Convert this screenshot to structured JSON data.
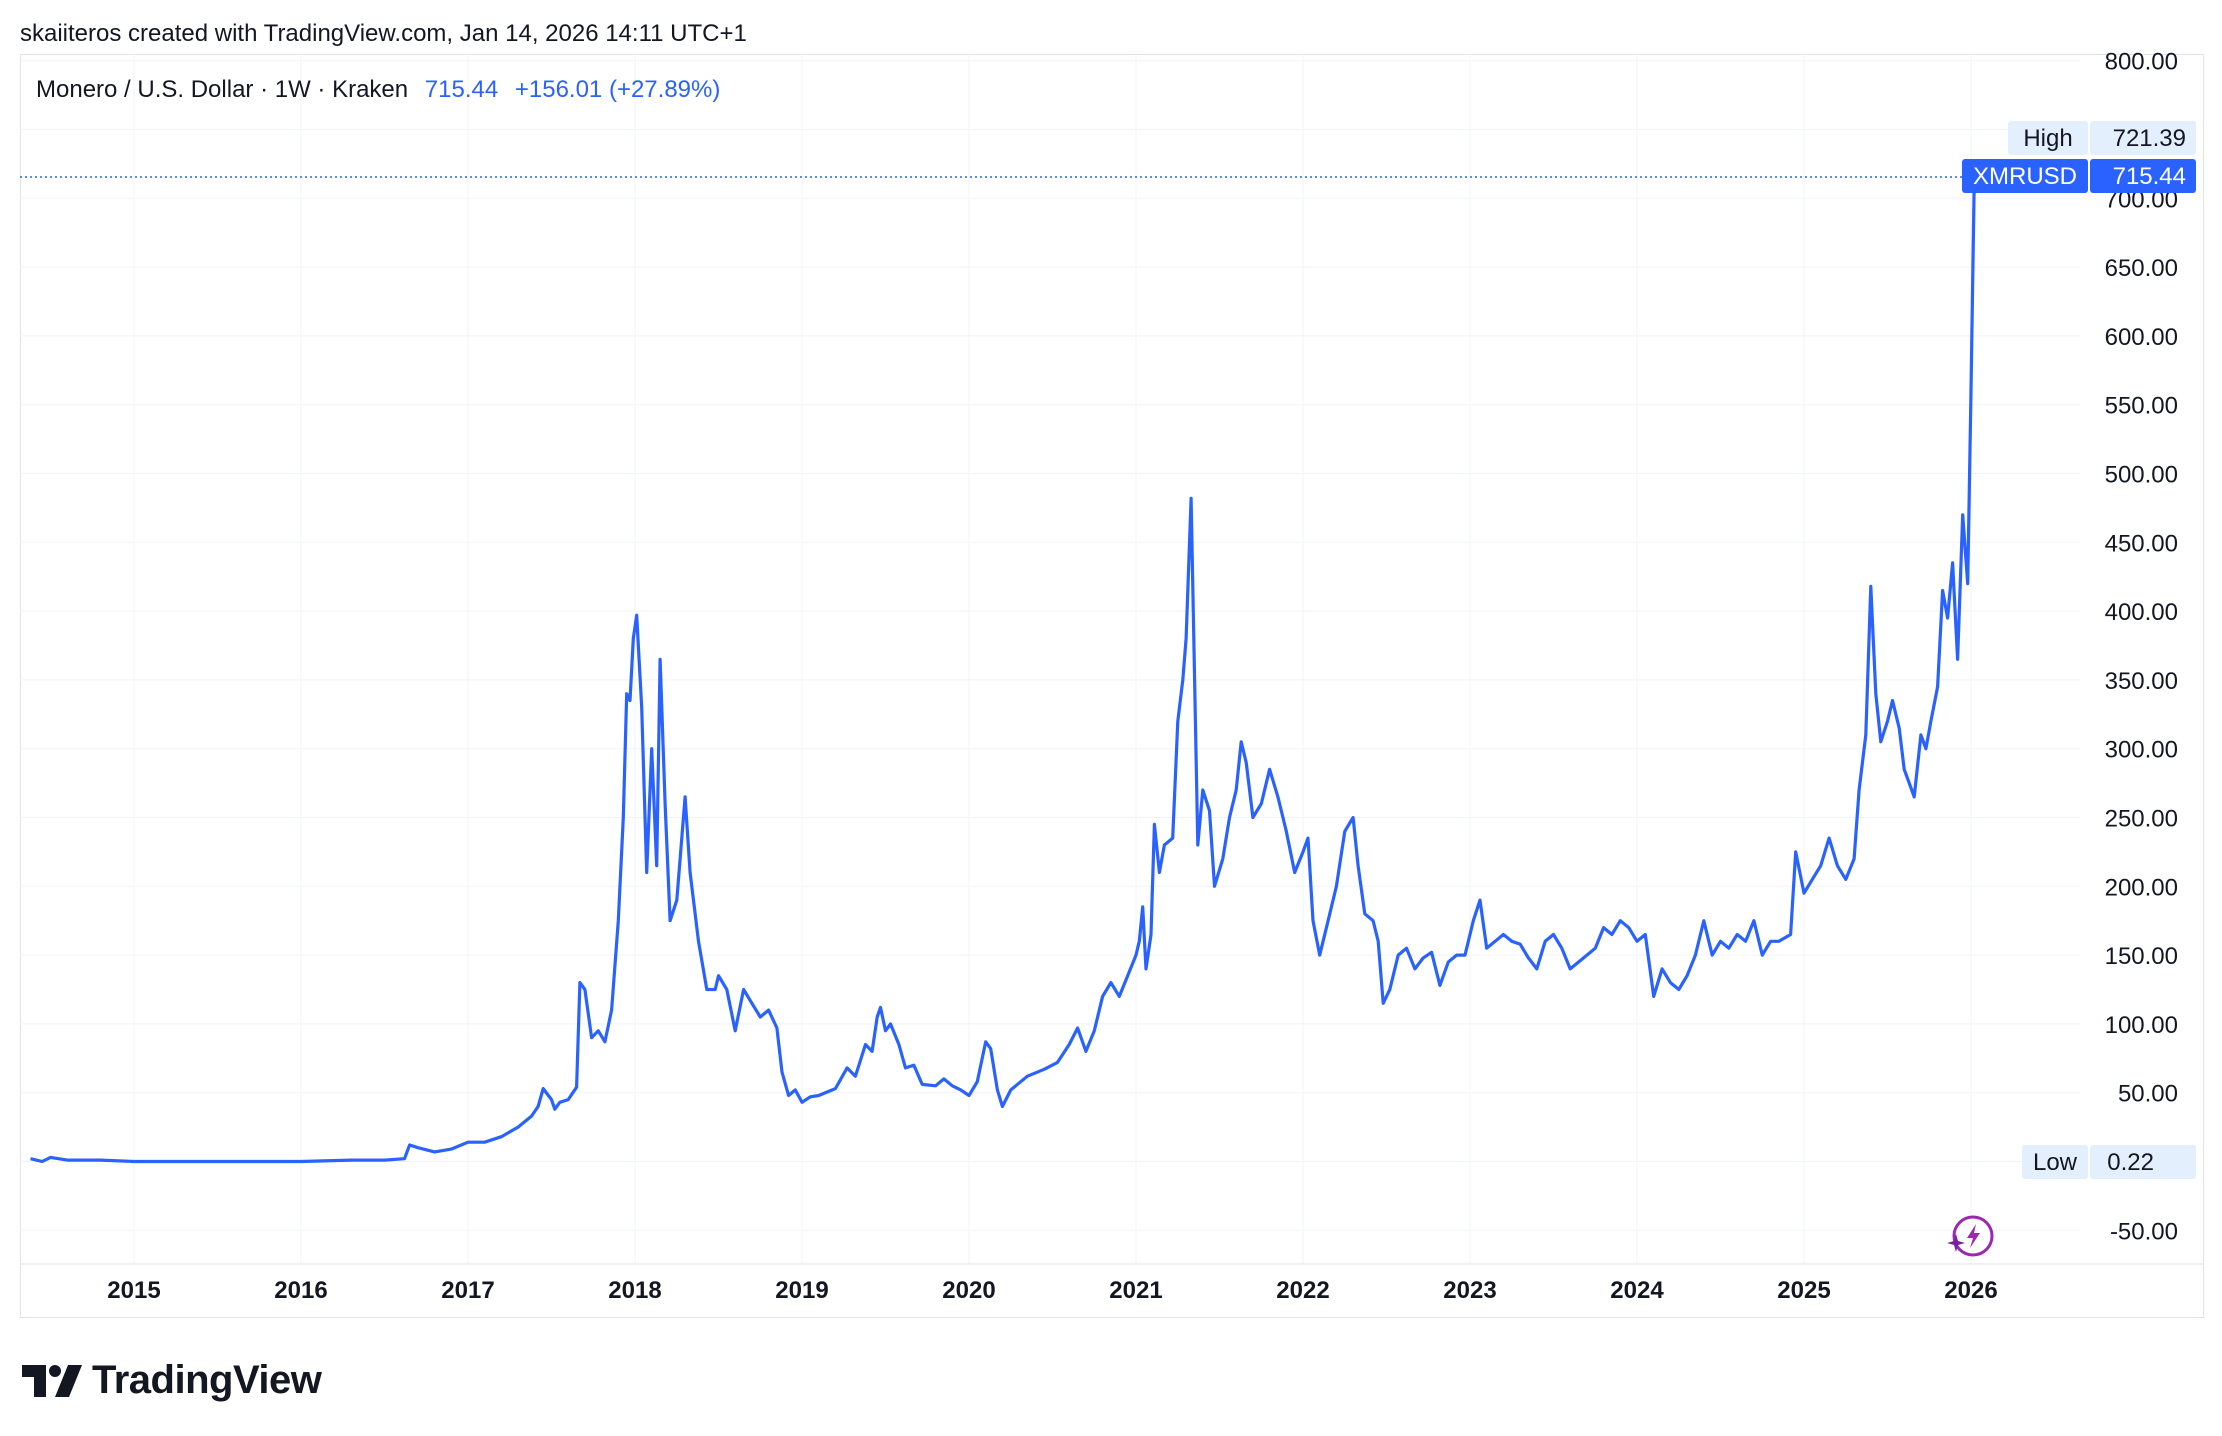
{
  "header": {
    "credit": "skaiiteros created with TradingView.com, Jan 14, 2026 14:11 UTC+1"
  },
  "legend": {
    "symbol": "Monero / U.S. Dollar · 1W · Kraken",
    "price": "715.44",
    "change": "+156.01 (+27.89%)"
  },
  "price_tags": {
    "high_label": "High",
    "high_value": "721.39",
    "ticker_label": "XMRUSD",
    "ticker_value": "715.44",
    "low_label": "Low",
    "low_value": "0.22"
  },
  "brand": {
    "name": "TradingView"
  },
  "colors": {
    "line": "#2962ff",
    "tag_bg": "#e3effd",
    "grid": "#f0f3fa"
  },
  "chart_data": {
    "type": "line",
    "title": "Monero / U.S. Dollar · 1W · Kraken",
    "xlabel": "",
    "ylabel": "",
    "x_tick_labels": [
      "2015",
      "2016",
      "2017",
      "2018",
      "2019",
      "2020",
      "2021",
      "2022",
      "2023",
      "2024",
      "2025",
      "2026"
    ],
    "y_tick_labels": [
      "800.00",
      "750.00",
      "700.00",
      "650.00",
      "600.00",
      "550.00",
      "500.00",
      "450.00",
      "400.00",
      "350.00",
      "300.00",
      "250.00",
      "200.00",
      "150.00",
      "100.00",
      "50.00",
      "0.00",
      "-50.00"
    ],
    "ylim": [
      -65,
      805
    ],
    "xlim": [
      2014.35,
      2026.5
    ],
    "grid": true,
    "series": [
      {
        "name": "XMRUSD",
        "points": [
          [
            2014.38,
            2
          ],
          [
            2014.45,
            0
          ],
          [
            2014.5,
            3
          ],
          [
            2014.6,
            1
          ],
          [
            2014.8,
            1
          ],
          [
            2015.0,
            0
          ],
          [
            2015.5,
            0
          ],
          [
            2016.0,
            0
          ],
          [
            2016.3,
            1
          ],
          [
            2016.5,
            1
          ],
          [
            2016.62,
            2
          ],
          [
            2016.65,
            12
          ],
          [
            2016.7,
            10
          ],
          [
            2016.8,
            7
          ],
          [
            2016.9,
            9
          ],
          [
            2017.0,
            14
          ],
          [
            2017.1,
            14
          ],
          [
            2017.2,
            18
          ],
          [
            2017.3,
            25
          ],
          [
            2017.38,
            33
          ],
          [
            2017.42,
            40
          ],
          [
            2017.45,
            53
          ],
          [
            2017.5,
            45
          ],
          [
            2017.52,
            38
          ],
          [
            2017.55,
            43
          ],
          [
            2017.6,
            45
          ],
          [
            2017.65,
            54
          ],
          [
            2017.67,
            130
          ],
          [
            2017.7,
            125
          ],
          [
            2017.74,
            90
          ],
          [
            2017.78,
            95
          ],
          [
            2017.82,
            87
          ],
          [
            2017.86,
            110
          ],
          [
            2017.9,
            175
          ],
          [
            2017.93,
            250
          ],
          [
            2017.95,
            340
          ],
          [
            2017.97,
            335
          ],
          [
            2017.99,
            380
          ],
          [
            2018.01,
            397
          ],
          [
            2018.04,
            330
          ],
          [
            2018.07,
            210
          ],
          [
            2018.1,
            300
          ],
          [
            2018.13,
            215
          ],
          [
            2018.15,
            365
          ],
          [
            2018.18,
            260
          ],
          [
            2018.21,
            175
          ],
          [
            2018.25,
            190
          ],
          [
            2018.3,
            265
          ],
          [
            2018.33,
            210
          ],
          [
            2018.38,
            160
          ],
          [
            2018.43,
            125
          ],
          [
            2018.48,
            125
          ],
          [
            2018.5,
            135
          ],
          [
            2018.55,
            125
          ],
          [
            2018.6,
            95
          ],
          [
            2018.65,
            125
          ],
          [
            2018.7,
            115
          ],
          [
            2018.75,
            105
          ],
          [
            2018.8,
            110
          ],
          [
            2018.85,
            97
          ],
          [
            2018.88,
            65
          ],
          [
            2018.92,
            48
          ],
          [
            2018.96,
            52
          ],
          [
            2019.0,
            43
          ],
          [
            2019.05,
            47
          ],
          [
            2019.1,
            48
          ],
          [
            2019.2,
            53
          ],
          [
            2019.27,
            68
          ],
          [
            2019.32,
            62
          ],
          [
            2019.38,
            85
          ],
          [
            2019.42,
            80
          ],
          [
            2019.45,
            105
          ],
          [
            2019.47,
            112
          ],
          [
            2019.5,
            95
          ],
          [
            2019.53,
            100
          ],
          [
            2019.58,
            85
          ],
          [
            2019.62,
            68
          ],
          [
            2019.67,
            70
          ],
          [
            2019.72,
            56
          ],
          [
            2019.8,
            55
          ],
          [
            2019.85,
            60
          ],
          [
            2019.9,
            55
          ],
          [
            2019.95,
            52
          ],
          [
            2020.0,
            48
          ],
          [
            2020.05,
            58
          ],
          [
            2020.1,
            87
          ],
          [
            2020.13,
            82
          ],
          [
            2020.17,
            52
          ],
          [
            2020.2,
            40
          ],
          [
            2020.25,
            52
          ],
          [
            2020.35,
            62
          ],
          [
            2020.45,
            67
          ],
          [
            2020.53,
            72
          ],
          [
            2020.6,
            85
          ],
          [
            2020.65,
            97
          ],
          [
            2020.7,
            80
          ],
          [
            2020.75,
            95
          ],
          [
            2020.8,
            120
          ],
          [
            2020.85,
            130
          ],
          [
            2020.9,
            120
          ],
          [
            2020.95,
            135
          ],
          [
            2021.0,
            150
          ],
          [
            2021.02,
            160
          ],
          [
            2021.04,
            185
          ],
          [
            2021.06,
            140
          ],
          [
            2021.09,
            165
          ],
          [
            2021.11,
            245
          ],
          [
            2021.14,
            210
          ],
          [
            2021.17,
            230
          ],
          [
            2021.22,
            235
          ],
          [
            2021.25,
            320
          ],
          [
            2021.28,
            350
          ],
          [
            2021.3,
            380
          ],
          [
            2021.33,
            482
          ],
          [
            2021.37,
            230
          ],
          [
            2021.4,
            270
          ],
          [
            2021.44,
            255
          ],
          [
            2021.47,
            200
          ],
          [
            2021.52,
            220
          ],
          [
            2021.56,
            250
          ],
          [
            2021.6,
            270
          ],
          [
            2021.63,
            305
          ],
          [
            2021.66,
            290
          ],
          [
            2021.7,
            250
          ],
          [
            2021.75,
            260
          ],
          [
            2021.8,
            285
          ],
          [
            2021.85,
            265
          ],
          [
            2021.9,
            240
          ],
          [
            2021.95,
            210
          ],
          [
            2022.0,
            225
          ],
          [
            2022.03,
            235
          ],
          [
            2022.06,
            175
          ],
          [
            2022.1,
            150
          ],
          [
            2022.15,
            175
          ],
          [
            2022.2,
            200
          ],
          [
            2022.25,
            240
          ],
          [
            2022.3,
            250
          ],
          [
            2022.33,
            215
          ],
          [
            2022.37,
            180
          ],
          [
            2022.42,
            175
          ],
          [
            2022.45,
            160
          ],
          [
            2022.48,
            115
          ],
          [
            2022.52,
            125
          ],
          [
            2022.57,
            150
          ],
          [
            2022.62,
            155
          ],
          [
            2022.67,
            140
          ],
          [
            2022.72,
            148
          ],
          [
            2022.77,
            152
          ],
          [
            2022.82,
            128
          ],
          [
            2022.87,
            145
          ],
          [
            2022.92,
            150
          ],
          [
            2022.97,
            150
          ],
          [
            2023.02,
            175
          ],
          [
            2023.06,
            190
          ],
          [
            2023.1,
            155
          ],
          [
            2023.15,
            160
          ],
          [
            2023.2,
            165
          ],
          [
            2023.25,
            160
          ],
          [
            2023.3,
            158
          ],
          [
            2023.35,
            148
          ],
          [
            2023.4,
            140
          ],
          [
            2023.45,
            160
          ],
          [
            2023.5,
            165
          ],
          [
            2023.55,
            155
          ],
          [
            2023.6,
            140
          ],
          [
            2023.65,
            145
          ],
          [
            2023.7,
            150
          ],
          [
            2023.75,
            155
          ],
          [
            2023.8,
            170
          ],
          [
            2023.85,
            165
          ],
          [
            2023.9,
            175
          ],
          [
            2023.95,
            170
          ],
          [
            2024.0,
            160
          ],
          [
            2024.05,
            165
          ],
          [
            2024.1,
            120
          ],
          [
            2024.15,
            140
          ],
          [
            2024.2,
            130
          ],
          [
            2024.25,
            125
          ],
          [
            2024.3,
            135
          ],
          [
            2024.35,
            150
          ],
          [
            2024.4,
            175
          ],
          [
            2024.45,
            150
          ],
          [
            2024.5,
            160
          ],
          [
            2024.55,
            155
          ],
          [
            2024.6,
            165
          ],
          [
            2024.65,
            160
          ],
          [
            2024.7,
            175
          ],
          [
            2024.75,
            150
          ],
          [
            2024.8,
            160
          ],
          [
            2024.85,
            160
          ],
          [
            2024.92,
            165
          ],
          [
            2024.95,
            225
          ],
          [
            2025.0,
            195
          ],
          [
            2025.05,
            205
          ],
          [
            2025.1,
            215
          ],
          [
            2025.15,
            235
          ],
          [
            2025.2,
            215
          ],
          [
            2025.25,
            205
          ],
          [
            2025.3,
            220
          ],
          [
            2025.33,
            270
          ],
          [
            2025.37,
            310
          ],
          [
            2025.4,
            418
          ],
          [
            2025.43,
            340
          ],
          [
            2025.46,
            305
          ],
          [
            2025.5,
            320
          ],
          [
            2025.53,
            335
          ],
          [
            2025.57,
            315
          ],
          [
            2025.6,
            285
          ],
          [
            2025.63,
            275
          ],
          [
            2025.66,
            265
          ],
          [
            2025.7,
            310
          ],
          [
            2025.73,
            300
          ],
          [
            2025.76,
            320
          ],
          [
            2025.8,
            345
          ],
          [
            2025.83,
            415
          ],
          [
            2025.86,
            395
          ],
          [
            2025.89,
            435
          ],
          [
            2025.92,
            365
          ],
          [
            2025.95,
            470
          ],
          [
            2025.98,
            420
          ],
          [
            2026.0,
            560
          ],
          [
            2026.02,
            715
          ]
        ]
      }
    ]
  }
}
